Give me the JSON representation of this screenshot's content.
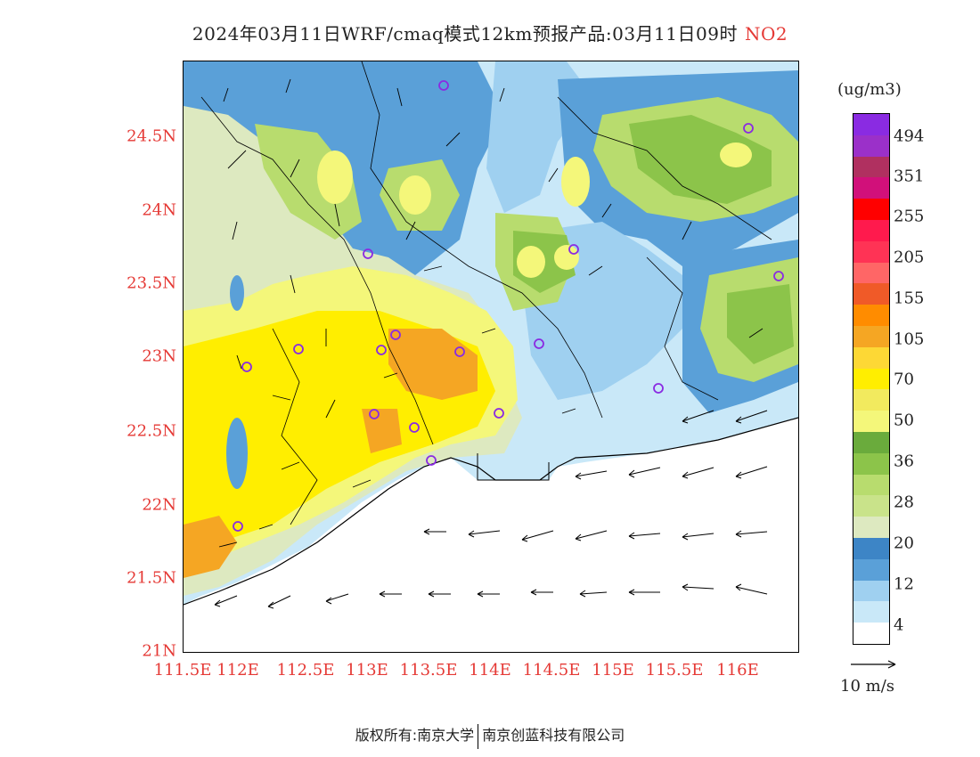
{
  "title": {
    "text": "2024年03月11日WRF/cmaq模式12km预报产品:03月11日09时",
    "species": "NO2"
  },
  "map": {
    "lat_ticks": [
      "24.5N",
      "24N",
      "23.5N",
      "23N",
      "22.5N",
      "22N",
      "21.5N",
      "21N"
    ],
    "lon_ticks": [
      "111.5E",
      "112E",
      "112.5E",
      "113E",
      "113.5E",
      "114E",
      "114.5E",
      "115E",
      "115.5E",
      "116E"
    ],
    "lat_range": [
      21,
      25
    ],
    "lon_range": [
      111.5,
      116.5
    ]
  },
  "legend": {
    "units": "(ug/m3)",
    "levels": [
      "494",
      "351",
      "255",
      "205",
      "155",
      "105",
      "70",
      "50",
      "36",
      "28",
      "20",
      "12",
      "4"
    ],
    "colors": [
      "#8a2be2",
      "#9b30c9",
      "#b03060",
      "#d1107a",
      "#ff0000",
      "#ff1a4d",
      "#ff3355",
      "#ff6666",
      "#f05a28",
      "#ff8c00",
      "#f5a623",
      "#fdd835",
      "#ffee00",
      "#f2ea5e",
      "#f4f77a",
      "#6aab3c",
      "#8cc44a",
      "#b8dc6e",
      "#c9e38a",
      "#dde9c0",
      "#3d85c6",
      "#5aa0d8",
      "#9fd0f0",
      "#c9e8f8",
      "#ffffff"
    ],
    "wind_ref": "10 m/s"
  },
  "footer": {
    "left": "版权所有:南京大学",
    "right": "南京创蓝科技有限公司"
  }
}
